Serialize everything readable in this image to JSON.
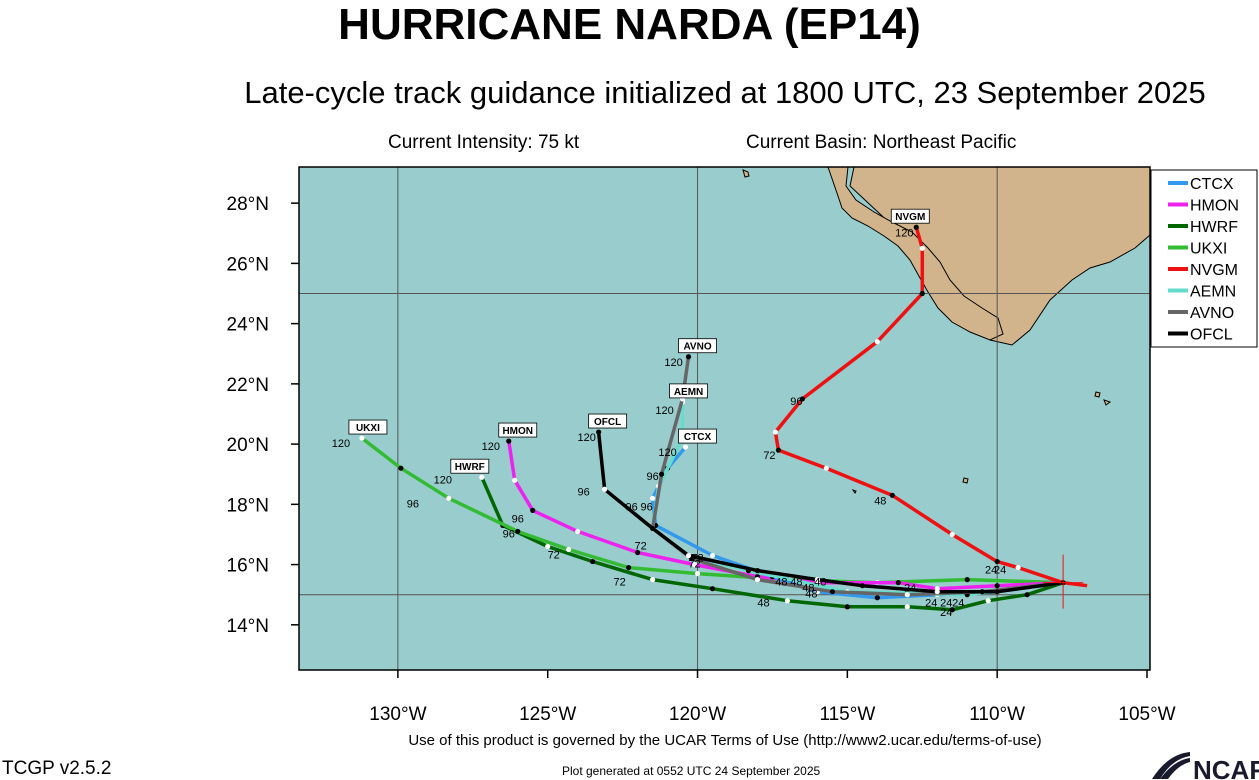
{
  "header": {
    "title": "HURRICANE NARDA (EP14)",
    "subtitle": "Late-cycle track guidance initialized at 1800 UTC, 23 September 2025",
    "intensity": "Current Intensity: 75 kt",
    "basin": "Current Basin: Northeast Pacific"
  },
  "axes": {
    "lon_labels": [
      "130°W",
      "125°W",
      "120°W",
      "115°W",
      "110°W",
      "105°W"
    ],
    "lat_labels": [
      "28°N",
      "26°N",
      "24°N",
      "22°N",
      "20°N",
      "18°N",
      "16°N",
      "14°N"
    ]
  },
  "legend": [
    "CTCX",
    "HMON",
    "HWRF",
    "UKXI",
    "NVGM",
    "AEMN",
    "AVNO",
    "OFCL"
  ],
  "colors": {
    "ocean": "#99cccc",
    "land": "#d2b48c",
    "CTCX": "#3399ee",
    "HMON": "#ee22ee",
    "HWRF": "#006600",
    "UKXI": "#33bb33",
    "NVGM": "#ee1111",
    "AEMN": "#66ddcc",
    "AVNO": "#666666",
    "OFCL": "#000000"
  },
  "chart_data": {
    "type": "map",
    "lon_range": [
      -133.3,
      -104.9
    ],
    "lat_range": [
      12.5,
      29.2
    ],
    "current_position": {
      "lon": -107.8,
      "lat": 15.4
    },
    "tracks": [
      {
        "name": "HWRF",
        "points": [
          [
            -107.8,
            15.4
          ],
          [
            -109,
            15
          ],
          [
            -110.3,
            14.8
          ],
          [
            -111.5,
            14.5
          ],
          [
            -113,
            14.6
          ],
          [
            -115,
            14.6
          ],
          [
            -117,
            14.8
          ],
          [
            -119.5,
            15.2
          ],
          [
            -121.5,
            15.5
          ],
          [
            -123.5,
            16.1
          ],
          [
            -125,
            16.6
          ],
          [
            -126.5,
            17.3
          ],
          [
            -127.2,
            18.9
          ]
        ],
        "labels": [
          {
            "text": "24",
            "lon": -111.7,
            "lat": 14.3
          },
          {
            "text": "48",
            "lon": -117.8,
            "lat": 14.6
          },
          {
            "text": "72",
            "lon": -122.6,
            "lat": 15.3
          },
          {
            "text": "96",
            "lon": -126.3,
            "lat": 16.9
          },
          {
            "text": "120",
            "lon": -128.5,
            "lat": 18.7
          }
        ],
        "label_box": {
          "text": "HWRF",
          "lon": -127.6,
          "lat": 19.2
        }
      },
      {
        "name": "UKXI",
        "points": [
          [
            -107.8,
            15.4
          ],
          [
            -111,
            15.5
          ],
          [
            -114,
            15.4
          ],
          [
            -117,
            15.5
          ],
          [
            -120,
            15.7
          ],
          [
            -122.3,
            15.9
          ],
          [
            -124.3,
            16.5
          ],
          [
            -126,
            17.1
          ],
          [
            -128.3,
            18.2
          ],
          [
            -129.9,
            19.2
          ],
          [
            -131.2,
            20.2
          ]
        ],
        "labels": [
          {
            "text": "24",
            "lon": -110.2,
            "lat": 15.7
          },
          {
            "text": "72",
            "lon": -124.8,
            "lat": 16.2
          },
          {
            "text": "96",
            "lon": -129.5,
            "lat": 17.9
          },
          {
            "text": "120",
            "lon": -131.9,
            "lat": 19.9
          }
        ],
        "label_box": {
          "text": "UKXI",
          "lon": -131,
          "lat": 20.5
        }
      },
      {
        "name": "HMON",
        "points": [
          [
            -107.8,
            15.4
          ],
          [
            -110,
            15.3
          ],
          [
            -112,
            15.2
          ],
          [
            -113.3,
            15.4
          ],
          [
            -116,
            15.4
          ],
          [
            -118,
            15.6
          ],
          [
            -120.1,
            16
          ],
          [
            -122,
            16.4
          ],
          [
            -124,
            17.1
          ],
          [
            -125.5,
            17.8
          ],
          [
            -126.1,
            18.8
          ],
          [
            -126.3,
            20.1
          ]
        ],
        "labels": [
          {
            "text": "24",
            "lon": -112.9,
            "lat": 15.1
          },
          {
            "text": "48",
            "lon": -116.3,
            "lat": 15.1
          },
          {
            "text": "72",
            "lon": -121.9,
            "lat": 16.5
          },
          {
            "text": "96",
            "lon": -126,
            "lat": 17.4
          },
          {
            "text": "120",
            "lon": -126.9,
            "lat": 19.8
          }
        ],
        "label_box": {
          "text": "HMON",
          "lon": -126,
          "lat": 20.4
        }
      },
      {
        "name": "CTCX",
        "points": [
          [
            -107.8,
            15.4
          ],
          [
            -110,
            15.1
          ],
          [
            -112,
            15
          ],
          [
            -114,
            14.9
          ],
          [
            -116,
            15.1
          ],
          [
            -117.5,
            15.6
          ],
          [
            -119.5,
            16.3
          ],
          [
            -121.4,
            17.3
          ],
          [
            -121.5,
            18.2
          ],
          [
            -121,
            19.2
          ],
          [
            -120.4,
            19.9
          ]
        ],
        "labels": [
          {
            "text": "120",
            "lon": -121,
            "lat": 19.6
          }
        ],
        "label_box": {
          "text": "CTCX",
          "lon": -120,
          "lat": 20.2
        }
      },
      {
        "name": "AEMN",
        "points": [
          [
            -107.8,
            15.4
          ],
          [
            -111,
            15
          ],
          [
            -115,
            15.1
          ],
          [
            -118.3,
            15.8
          ],
          [
            -120.3,
            16.3
          ],
          [
            -121.5,
            17.2
          ],
          [
            -121.3,
            18.6
          ],
          [
            -120.5,
            20.2
          ],
          [
            -120.5,
            21.4
          ]
        ],
        "labels": [
          {
            "text": "120",
            "lon": -121.1,
            "lat": 21
          }
        ],
        "label_box": {
          "text": "AEMN",
          "lon": -120.3,
          "lat": 21.7
        }
      },
      {
        "name": "AVNO",
        "points": [
          [
            -107.8,
            15.4
          ],
          [
            -110.5,
            15.1
          ],
          [
            -113,
            15
          ],
          [
            -115.5,
            15.1
          ],
          [
            -118,
            15.5
          ],
          [
            -120.2,
            16.2
          ],
          [
            -121.5,
            17.2
          ],
          [
            -121.2,
            19
          ],
          [
            -120.5,
            21.5
          ],
          [
            -120.3,
            22.9
          ]
        ],
        "labels": [
          {
            "text": "96",
            "lon": -122.2,
            "lat": 17.8
          },
          {
            "text": "120",
            "lon": -120.8,
            "lat": 22.6
          }
        ],
        "label_box": {
          "text": "AVNO",
          "lon": -120,
          "lat": 23.2
        }
      },
      {
        "name": "OFCL",
        "points": [
          [
            -107.8,
            15.4
          ],
          [
            -110,
            15.1
          ],
          [
            -112,
            15.1
          ],
          [
            -114.5,
            15.3
          ],
          [
            -116,
            15.5
          ],
          [
            -118,
            15.8
          ],
          [
            -120.3,
            16.3
          ],
          [
            -121.5,
            17.2
          ],
          [
            -123.1,
            18.5
          ],
          [
            -123.3,
            20.4
          ]
        ],
        "labels": [
          {
            "text": "96",
            "lon": -123.8,
            "lat": 18.3
          },
          {
            "text": "120",
            "lon": -123.7,
            "lat": 20.1
          }
        ],
        "label_box": {
          "text": "OFCL",
          "lon": -123,
          "lat": 20.7
        }
      },
      {
        "name": "NVGM",
        "points": [
          [
            -107,
            15.3
          ],
          [
            -107.8,
            15.4
          ],
          [
            -109.3,
            15.9
          ],
          [
            -110,
            16.1
          ],
          [
            -111.5,
            17
          ],
          [
            -113.5,
            18.3
          ],
          [
            -115.7,
            19.2
          ],
          [
            -117.3,
            19.8
          ],
          [
            -117.4,
            20.4
          ],
          [
            -116.5,
            21.5
          ],
          [
            -114,
            23.4
          ],
          [
            -112.5,
            25
          ],
          [
            -112.5,
            26.5
          ],
          [
            -112.7,
            27.2
          ]
        ],
        "labels": [
          {
            "text": "24",
            "lon": -109.9,
            "lat": 15.7
          },
          {
            "text": "48",
            "lon": -113.9,
            "lat": 18
          },
          {
            "text": "72",
            "lon": -117.6,
            "lat": 19.5
          },
          {
            "text": "96",
            "lon": -116.7,
            "lat": 21.3
          },
          {
            "text": "120",
            "lon": -113.1,
            "lat": 26.9
          }
        ],
        "label_box": {
          "text": "NVGM",
          "lon": -112.9,
          "lat": 27.5
        }
      }
    ],
    "extra_labels": [
      {
        "text": "24",
        "lon": -112.2,
        "lat": 14.6
      },
      {
        "text": "24",
        "lon": -111.7,
        "lat": 14.6
      },
      {
        "text": "24",
        "lon": -111.3,
        "lat": 14.6
      },
      {
        "text": "48",
        "lon": -117.2,
        "lat": 15.3
      },
      {
        "text": "48",
        "lon": -116.7,
        "lat": 15.3
      },
      {
        "text": "48",
        "lon": -115.9,
        "lat": 15.3
      },
      {
        "text": "48",
        "lon": -116.2,
        "lat": 14.9
      },
      {
        "text": "72",
        "lon": -120,
        "lat": 16.1
      },
      {
        "text": "72",
        "lon": -120.1,
        "lat": 15.9
      },
      {
        "text": "96",
        "lon": -121.7,
        "lat": 17.8
      },
      {
        "text": "96",
        "lon": -121.5,
        "lat": 18.8
      }
    ]
  },
  "footer": {
    "terms": "Use of this product is governed by the UCAR Terms of Use (http://www2.ucar.edu/terms-of-use)",
    "version": "TCGP v2.5.2",
    "generated": "Plot generated at 0552 UTC   24 September 2025",
    "logo": "NCAR"
  }
}
